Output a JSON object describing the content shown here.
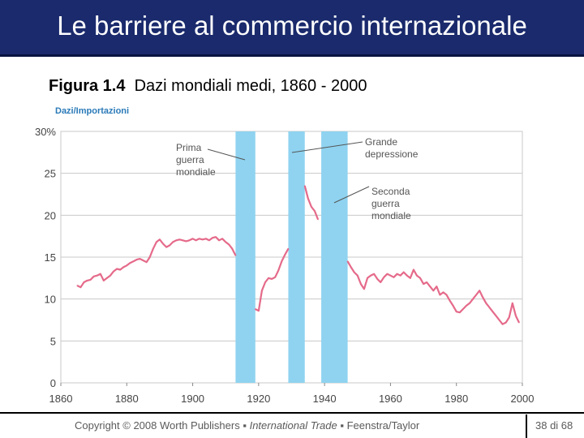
{
  "slide": {
    "title": "Le barriere al commercio internazionale",
    "figure_label": "Figura 1.4",
    "figure_caption": "Dazi mondiali medi, 1860 - 2000",
    "copyright": "Copyright © 2008 Worth Publishers",
    "book_title": "International Trade",
    "authors": "Feenstra/Taylor",
    "bullet": "▪",
    "page": "38 di 68"
  },
  "chart_data": {
    "type": "line",
    "title": "",
    "xlabel": "",
    "ylabel": "Dazi/Importazioni",
    "xlim": [
      1860,
      2000
    ],
    "ylim": [
      0,
      30
    ],
    "grid": true,
    "x_ticks": [
      "1860",
      "1880",
      "1900",
      "1920",
      "1940",
      "1960",
      "1980",
      "2000"
    ],
    "y_ticks": [
      "30%",
      "25",
      "20",
      "15",
      "10",
      "5",
      "0"
    ],
    "shaded_periods": [
      {
        "start": 1913,
        "end": 1919
      },
      {
        "start": 1929,
        "end": 1934
      },
      {
        "start": 1939,
        "end": 1947
      }
    ],
    "annotations": [
      {
        "text": [
          "Prima",
          "guerra",
          "mondiale"
        ],
        "points_to": "1914-1918"
      },
      {
        "text": [
          "Grande",
          "depressione"
        ],
        "points_to": "1929-1933"
      },
      {
        "text": [
          "Seconda",
          "guerra",
          "mondiale"
        ],
        "points_to": "1939-1945"
      }
    ],
    "series": [
      {
        "segments": [
          [
            [
              1865,
              11.6
            ],
            [
              1866,
              11.4
            ],
            [
              1867,
              12.0
            ],
            [
              1868,
              12.2
            ],
            [
              1869,
              12.3
            ],
            [
              1870,
              12.7
            ],
            [
              1871,
              12.8
            ],
            [
              1872,
              13.0
            ],
            [
              1873,
              12.2
            ],
            [
              1874,
              12.5
            ],
            [
              1875,
              12.8
            ],
            [
              1876,
              13.3
            ],
            [
              1877,
              13.6
            ],
            [
              1878,
              13.5
            ],
            [
              1879,
              13.8
            ],
            [
              1880,
              14.0
            ],
            [
              1881,
              14.3
            ],
            [
              1882,
              14.5
            ],
            [
              1883,
              14.7
            ],
            [
              1884,
              14.8
            ],
            [
              1885,
              14.6
            ],
            [
              1886,
              14.4
            ],
            [
              1887,
              15.0
            ],
            [
              1888,
              16.0
            ],
            [
              1889,
              16.8
            ],
            [
              1890,
              17.1
            ],
            [
              1891,
              16.6
            ],
            [
              1892,
              16.2
            ],
            [
              1893,
              16.4
            ],
            [
              1894,
              16.8
            ],
            [
              1895,
              17.0
            ],
            [
              1896,
              17.1
            ],
            [
              1897,
              17.0
            ],
            [
              1898,
              16.9
            ],
            [
              1899,
              17.0
            ],
            [
              1900,
              17.2
            ],
            [
              1901,
              17.0
            ],
            [
              1902,
              17.2
            ],
            [
              1903,
              17.1
            ],
            [
              1904,
              17.2
            ],
            [
              1905,
              17.0
            ],
            [
              1906,
              17.3
            ],
            [
              1907,
              17.4
            ],
            [
              1908,
              17.0
            ],
            [
              1909,
              17.2
            ],
            [
              1910,
              16.8
            ],
            [
              1911,
              16.5
            ],
            [
              1912,
              16.0
            ],
            [
              1913,
              15.2
            ]
          ],
          [
            [
              1919,
              8.8
            ],
            [
              1920,
              8.6
            ],
            [
              1921,
              11.0
            ],
            [
              1922,
              12.0
            ],
            [
              1923,
              12.5
            ],
            [
              1924,
              12.4
            ],
            [
              1925,
              12.6
            ],
            [
              1926,
              13.4
            ],
            [
              1927,
              14.5
            ],
            [
              1928,
              15.3
            ],
            [
              1929,
              16.0
            ]
          ],
          [
            [
              1934,
              23.5
            ],
            [
              1935,
              22.0
            ],
            [
              1936,
              21.0
            ],
            [
              1937,
              20.5
            ],
            [
              1938,
              19.5
            ]
          ],
          [
            [
              1947,
              14.5
            ],
            [
              1948,
              13.8
            ],
            [
              1949,
              13.2
            ],
            [
              1950,
              12.8
            ],
            [
              1951,
              11.8
            ],
            [
              1952,
              11.2
            ],
            [
              1953,
              12.5
            ],
            [
              1954,
              12.8
            ],
            [
              1955,
              13.0
            ],
            [
              1956,
              12.4
            ],
            [
              1957,
              12.0
            ],
            [
              1958,
              12.6
            ],
            [
              1959,
              13.0
            ],
            [
              1960,
              12.8
            ],
            [
              1961,
              12.6
            ],
            [
              1962,
              13.0
            ],
            [
              1963,
              12.8
            ],
            [
              1964,
              13.2
            ],
            [
              1965,
              12.8
            ],
            [
              1966,
              12.5
            ],
            [
              1967,
              13.5
            ],
            [
              1968,
              12.8
            ],
            [
              1969,
              12.5
            ],
            [
              1970,
              11.8
            ],
            [
              1971,
              12.0
            ],
            [
              1972,
              11.5
            ],
            [
              1973,
              11.0
            ],
            [
              1974,
              11.5
            ],
            [
              1975,
              10.5
            ],
            [
              1976,
              10.8
            ],
            [
              1977,
              10.5
            ],
            [
              1978,
              9.8
            ],
            [
              1979,
              9.2
            ],
            [
              1980,
              8.5
            ],
            [
              1981,
              8.4
            ],
            [
              1982,
              8.8
            ],
            [
              1983,
              9.2
            ],
            [
              1984,
              9.5
            ],
            [
              1985,
              10.0
            ],
            [
              1986,
              10.5
            ],
            [
              1987,
              11.0
            ],
            [
              1988,
              10.2
            ],
            [
              1989,
              9.5
            ],
            [
              1990,
              9.0
            ],
            [
              1991,
              8.5
            ],
            [
              1992,
              8.0
            ],
            [
              1993,
              7.5
            ],
            [
              1994,
              7.0
            ],
            [
              1995,
              7.2
            ],
            [
              1996,
              7.8
            ],
            [
              1997,
              9.5
            ],
            [
              1998,
              8.0
            ],
            [
              1999,
              7.2
            ]
          ]
        ]
      }
    ],
    "colors": {
      "line": "#e56a8a",
      "shade": "#8fd3f0",
      "grid": "#c8c8c8",
      "title_bar": "#1a2a6c",
      "ylabel": "#2a7ab8"
    }
  }
}
